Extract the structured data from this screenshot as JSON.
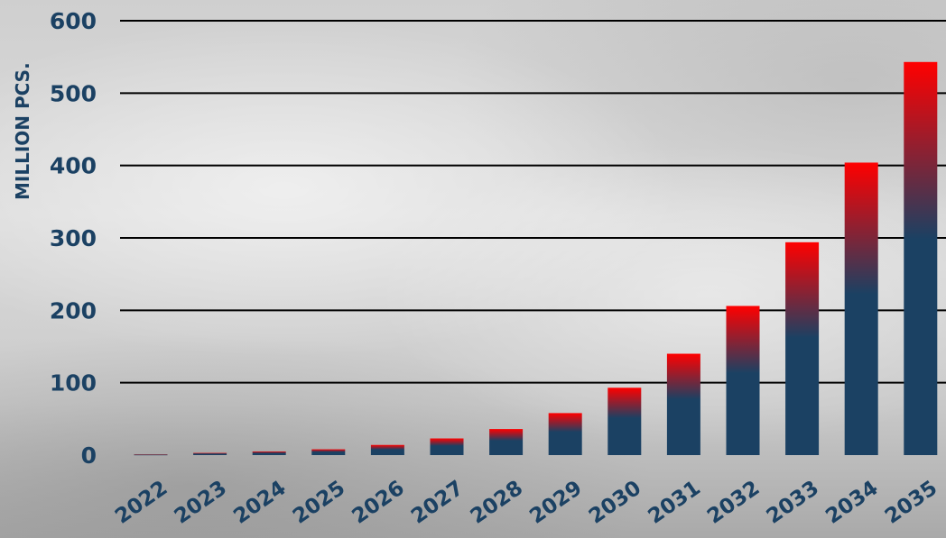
{
  "chart_data": {
    "type": "bar",
    "title": "",
    "xlabel": "",
    "ylabel": "MILLION PCS.",
    "ylim": [
      0,
      600
    ],
    "yticks": [
      0,
      100,
      200,
      300,
      400,
      500,
      600
    ],
    "grid": true,
    "categories": [
      "2022",
      "2023",
      "2024",
      "2025",
      "2026",
      "2027",
      "2028",
      "2029",
      "2030",
      "2031",
      "2032",
      "2033",
      "2034",
      "2035"
    ],
    "values": [
      1,
      3,
      5,
      8,
      14,
      23,
      36,
      58,
      93,
      140,
      206,
      294,
      404,
      543
    ],
    "colors": {
      "bar_base": "#1b4163",
      "bar_top": "#ff0000",
      "axis_text": "#1b4163",
      "grid": "#000000"
    }
  }
}
